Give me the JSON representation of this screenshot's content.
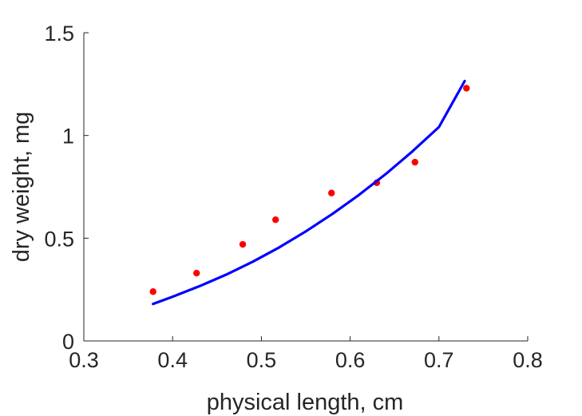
{
  "chart_data": {
    "type": "scatter",
    "title": "",
    "xlabel": "physical length, cm",
    "ylabel": "dry weight, mg",
    "xlim": [
      0.3,
      0.8
    ],
    "ylim": [
      0,
      1.5
    ],
    "xticks": [
      "0.3",
      "0.4",
      "0.5",
      "0.6",
      "0.7",
      "0.8"
    ],
    "yticks": [
      "0",
      "0.5",
      "1",
      "1.5"
    ],
    "grid": false,
    "legend": "none",
    "series": [
      {
        "kind": "scatter",
        "color": "#ff0000",
        "x": [
          0.378,
          0.427,
          0.479,
          0.516,
          0.579,
          0.63,
          0.673,
          0.731
        ],
        "y": [
          0.24,
          0.33,
          0.47,
          0.59,
          0.72,
          0.77,
          0.87,
          1.23
        ]
      },
      {
        "kind": "line",
        "color": "#0000ff",
        "x": [
          0.378,
          0.4,
          0.43,
          0.46,
          0.49,
          0.52,
          0.55,
          0.58,
          0.61,
          0.64,
          0.67,
          0.7,
          0.729
        ],
        "y": [
          0.18,
          0.215,
          0.266,
          0.322,
          0.385,
          0.455,
          0.533,
          0.618,
          0.711,
          0.812,
          0.922,
          1.041,
          1.265
        ]
      }
    ]
  }
}
